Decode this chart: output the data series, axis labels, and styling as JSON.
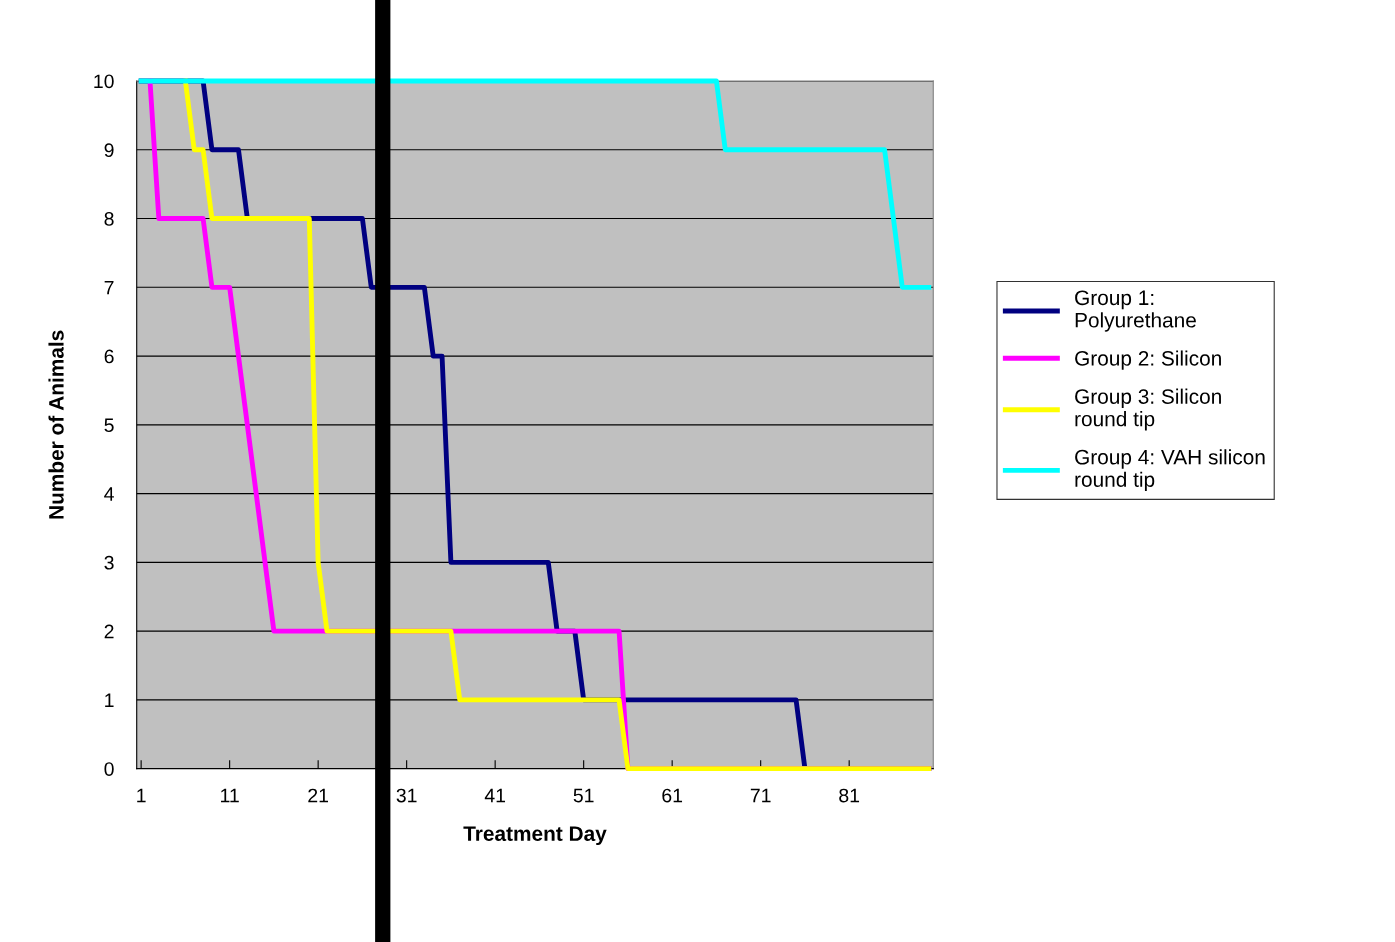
{
  "chart_data": {
    "type": "line",
    "xlabel": "Treatment Day",
    "ylabel": "Number of Animals",
    "series": [
      {
        "name": "Group 1:\nPolyurethane",
        "color": "#000080",
        "x": [
          1,
          8,
          9,
          12,
          13,
          26,
          27,
          33,
          34,
          35,
          36,
          47,
          48,
          50,
          51,
          75,
          76,
          90
        ],
        "values": [
          10,
          10,
          9,
          9,
          8,
          8,
          7,
          7,
          6,
          6,
          3,
          3,
          2,
          2,
          1,
          1,
          0,
          0
        ]
      },
      {
        "name": "Group 2: Silicon",
        "color": "#ff00ff",
        "x": [
          2,
          3,
          8,
          9,
          11,
          12,
          13,
          14,
          15,
          16,
          55,
          56,
          90
        ],
        "values": [
          10,
          8,
          8,
          7,
          7,
          6,
          5,
          4,
          3,
          2,
          2,
          0,
          0
        ]
      },
      {
        "name": "Group 3: Silicon\nround tip",
        "color": "#ffff00",
        "x": [
          6,
          7,
          8,
          9,
          20,
          21,
          22,
          36,
          37,
          55,
          56,
          90
        ],
        "values": [
          10,
          9,
          9,
          8,
          8,
          3,
          2,
          2,
          1,
          1,
          0,
          0
        ]
      },
      {
        "name": "Group 4: VAH silicon\nround tip",
        "color": "#00ffff",
        "x": [
          1,
          66,
          67,
          85,
          87,
          90
        ],
        "values": [
          10,
          10,
          9,
          9,
          7,
          7
        ]
      }
    ],
    "xlim": [
      0.5,
      90.5
    ],
    "xticks": [
      1,
      11,
      21,
      31,
      41,
      51,
      61,
      71,
      81
    ],
    "ylim": [
      0,
      10
    ],
    "yticks": [
      0,
      1,
      2,
      3,
      4,
      5,
      6,
      7,
      8,
      9,
      10
    ],
    "grid": "y",
    "legend": "right",
    "marker": "none",
    "line_style": "solid",
    "ref_lines": [
      {
        "axis": "x",
        "value": 28.3,
        "color": "#000000"
      }
    ]
  }
}
